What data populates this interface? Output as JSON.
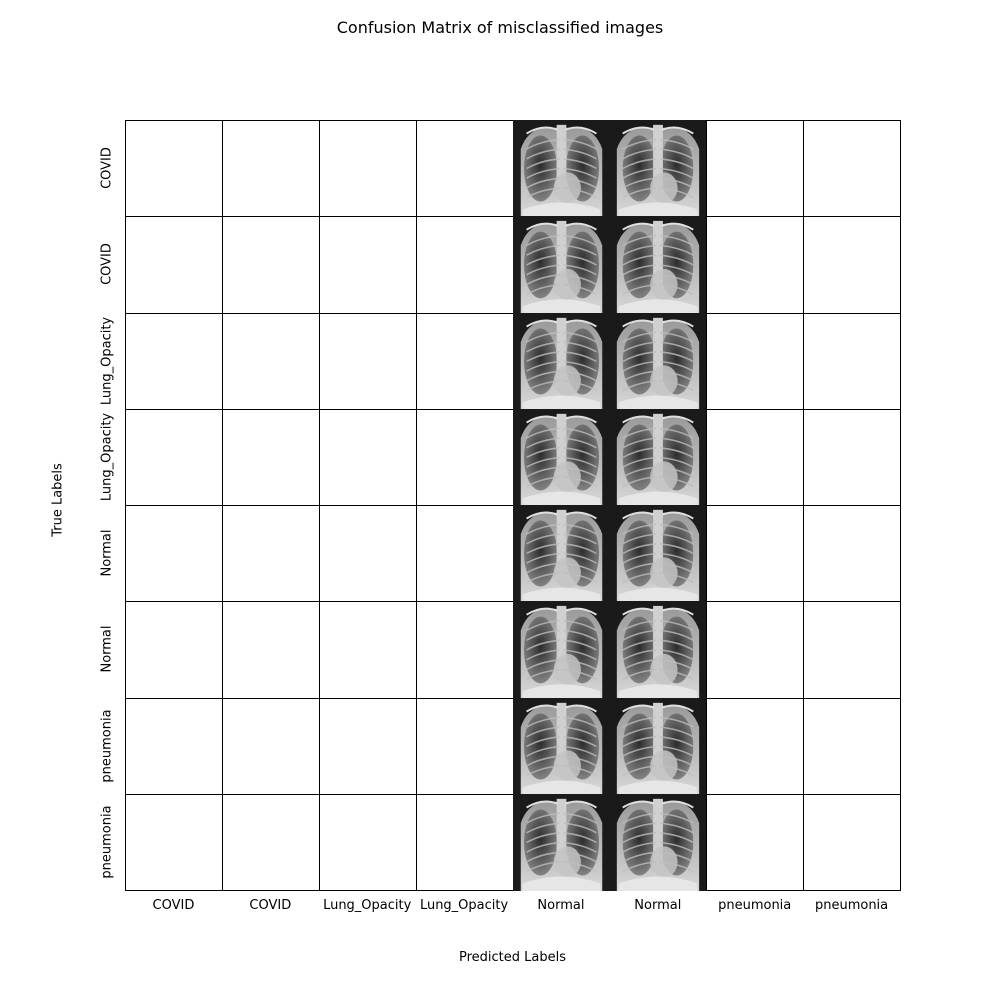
{
  "chart_data": {
    "type": "table",
    "title": "Confusion Matrix of misclassified images",
    "xlabel": "Predicted Labels",
    "ylabel": "True Labels",
    "x_tick_labels": [
      "COVID",
      "COVID",
      "Lung_Opacity",
      "Lung_Opacity",
      "Normal",
      "Normal",
      "pneumonia",
      "pneumonia"
    ],
    "y_tick_labels": [
      "COVID",
      "COVID",
      "Lung_Opacity",
      "Lung_Opacity",
      "Normal",
      "Normal",
      "pneumonia",
      "pneumonia"
    ],
    "cells_with_xray_image": [
      [
        0,
        4
      ],
      [
        0,
        5
      ],
      [
        1,
        4
      ],
      [
        1,
        5
      ],
      [
        2,
        4
      ],
      [
        2,
        5
      ],
      [
        3,
        4
      ],
      [
        3,
        5
      ],
      [
        4,
        4
      ],
      [
        4,
        5
      ],
      [
        5,
        4
      ],
      [
        5,
        5
      ],
      [
        6,
        4
      ],
      [
        6,
        5
      ],
      [
        7,
        4
      ],
      [
        7,
        5
      ]
    ],
    "grid": true,
    "cell_border_color": "#000000"
  }
}
